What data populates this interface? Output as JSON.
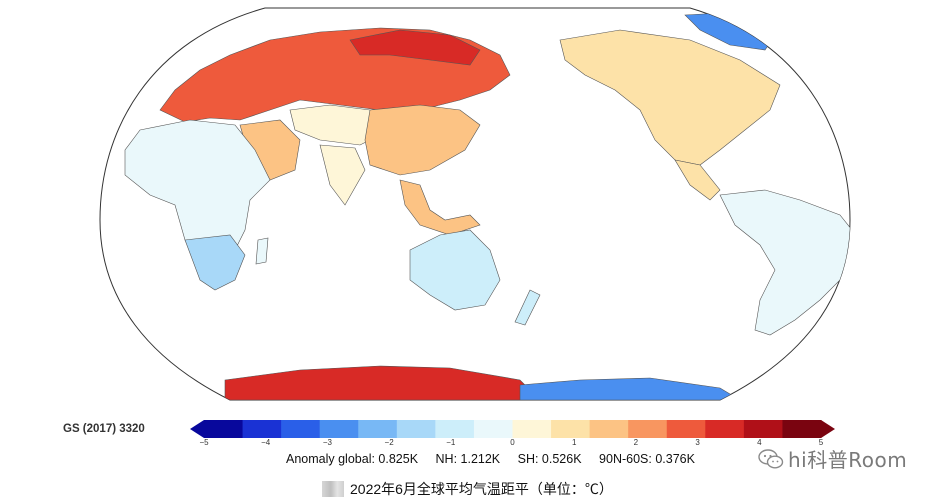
{
  "map": {
    "projection": "robinson-pacific-centered",
    "ocean_color": "#ffffff",
    "land_regions": [
      {
        "name": "europe-russia",
        "anomaly": 2.5
      },
      {
        "name": "north-siberia",
        "anomaly": 3.5
      },
      {
        "name": "central-asia",
        "anomaly": 0.5
      },
      {
        "name": "middle-east",
        "anomaly": 1.5
      },
      {
        "name": "india",
        "anomaly": 0.5
      },
      {
        "name": "china",
        "anomaly": 1.5
      },
      {
        "name": "africa",
        "anomaly": -0.5
      },
      {
        "name": "southern-africa",
        "anomaly": -1.5
      },
      {
        "name": "australia",
        "anomaly": -1
      },
      {
        "name": "north-america",
        "anomaly": 1
      },
      {
        "name": "greenland",
        "anomaly": -3
      },
      {
        "name": "south-america",
        "anomaly": -0.5
      },
      {
        "name": "antarctica-east",
        "anomaly": 3.5
      },
      {
        "name": "antarctica-west",
        "anomaly": -3
      }
    ]
  },
  "colorbar": {
    "min": -5,
    "max": 5,
    "colors": [
      "#08089c",
      "#1a32d4",
      "#2a5fe8",
      "#4a8ff0",
      "#78b8f5",
      "#a8d8f8",
      "#cdeefa",
      "#eaf8fb",
      "#fef6d8",
      "#fde2a8",
      "#fcc384",
      "#f89660",
      "#ee5a3c",
      "#d82a26",
      "#b01018",
      "#7a0410"
    ],
    "tick_labels": [
      "−5",
      "−4",
      "−3",
      "−2",
      "−1",
      "0",
      "1",
      "2",
      "3",
      "4",
      "5"
    ]
  },
  "source_label": "GS (2017) 3320",
  "stats": {
    "global": "Anomaly global: 0.825K",
    "nh": "NH: 1.212K",
    "sh": "SH: 0.526K",
    "band": "90N-60S: 0.376K"
  },
  "watermark": {
    "text": "hi科普Room",
    "icon": "wechat-icon"
  },
  "caption": "2022年6月全球平均气温距平（单位：℃）"
}
